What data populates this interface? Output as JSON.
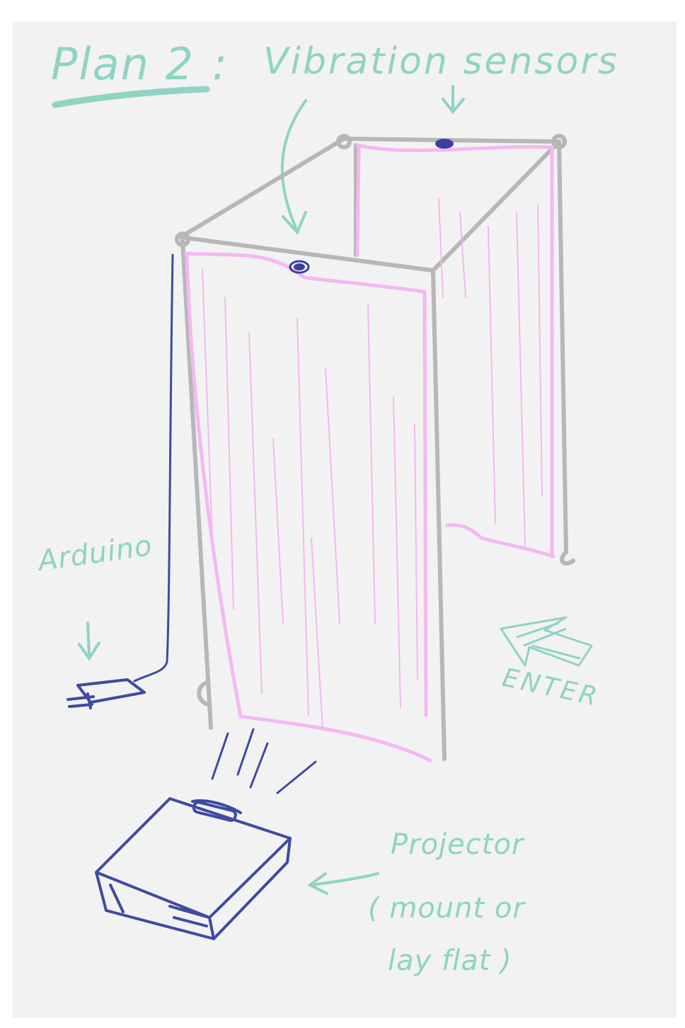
{
  "title": "Plan 2",
  "title_separator": ":",
  "subtitle": "Vibration sensors",
  "labels": {
    "arduino": "Arduino",
    "enter": "ENTER",
    "projector_line1": "Projector",
    "projector_line2": "( mount or",
    "projector_line3": "lay flat )"
  },
  "colors": {
    "annotation": "#8fd3c3",
    "frame": "#b7b7b7",
    "curtain": "#f4b8f0",
    "wire": "#3f4aa0",
    "sensor": "#3a3f9a",
    "paper": "#f2f2f2"
  }
}
